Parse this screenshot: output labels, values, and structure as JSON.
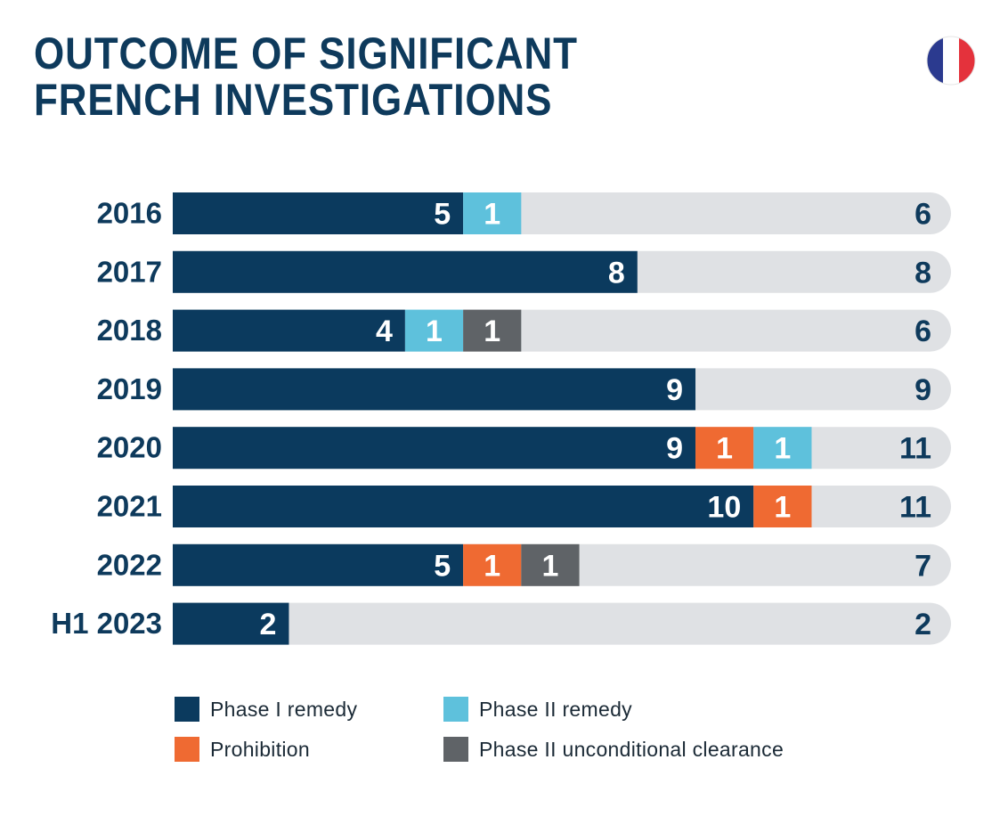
{
  "title_line1": "OUTCOME OF SIGNIFICANT",
  "title_line2": "FRENCH INVESTIGATIONS",
  "colors": {
    "phase1_remedy": "#0b3a5e",
    "phase2_remedy": "#5ec1dc",
    "prohibition": "#ef6a32",
    "phase2_unconditional": "#5f6367",
    "track": "#dfe1e4",
    "text_dark": "#0e3a5c"
  },
  "legend": [
    {
      "label": "Phase I remedy",
      "color": "#0b3a5e"
    },
    {
      "label": "Phase II remedy",
      "color": "#5ec1dc"
    },
    {
      "label": "Prohibition",
      "color": "#ef6a32"
    },
    {
      "label": "Phase II unconditional clearance",
      "color": "#5f6367"
    }
  ],
  "chart_data": {
    "type": "bar",
    "orientation": "horizontal",
    "stacked": true,
    "categories": [
      "2016",
      "2017",
      "2018",
      "2019",
      "2020",
      "2021",
      "2022",
      "H1 2023"
    ],
    "series": [
      {
        "name": "Phase I remedy",
        "color": "#0b3a5e",
        "values": [
          5,
          8,
          4,
          9,
          9,
          10,
          5,
          2
        ]
      },
      {
        "name": "Prohibition",
        "color": "#ef6a32",
        "values": [
          0,
          0,
          0,
          0,
          1,
          1,
          1,
          0
        ]
      },
      {
        "name": "Phase II remedy",
        "color": "#5ec1dc",
        "values": [
          1,
          0,
          1,
          0,
          1,
          0,
          0,
          0
        ]
      },
      {
        "name": "Phase II unconditional clearance",
        "color": "#5f6367",
        "values": [
          0,
          0,
          1,
          0,
          0,
          0,
          1,
          0
        ]
      }
    ],
    "totals": [
      6,
      8,
      6,
      9,
      11,
      11,
      7,
      2
    ],
    "xlim": [
      0,
      13.4
    ],
    "grid": false,
    "legend_position": "bottom"
  }
}
